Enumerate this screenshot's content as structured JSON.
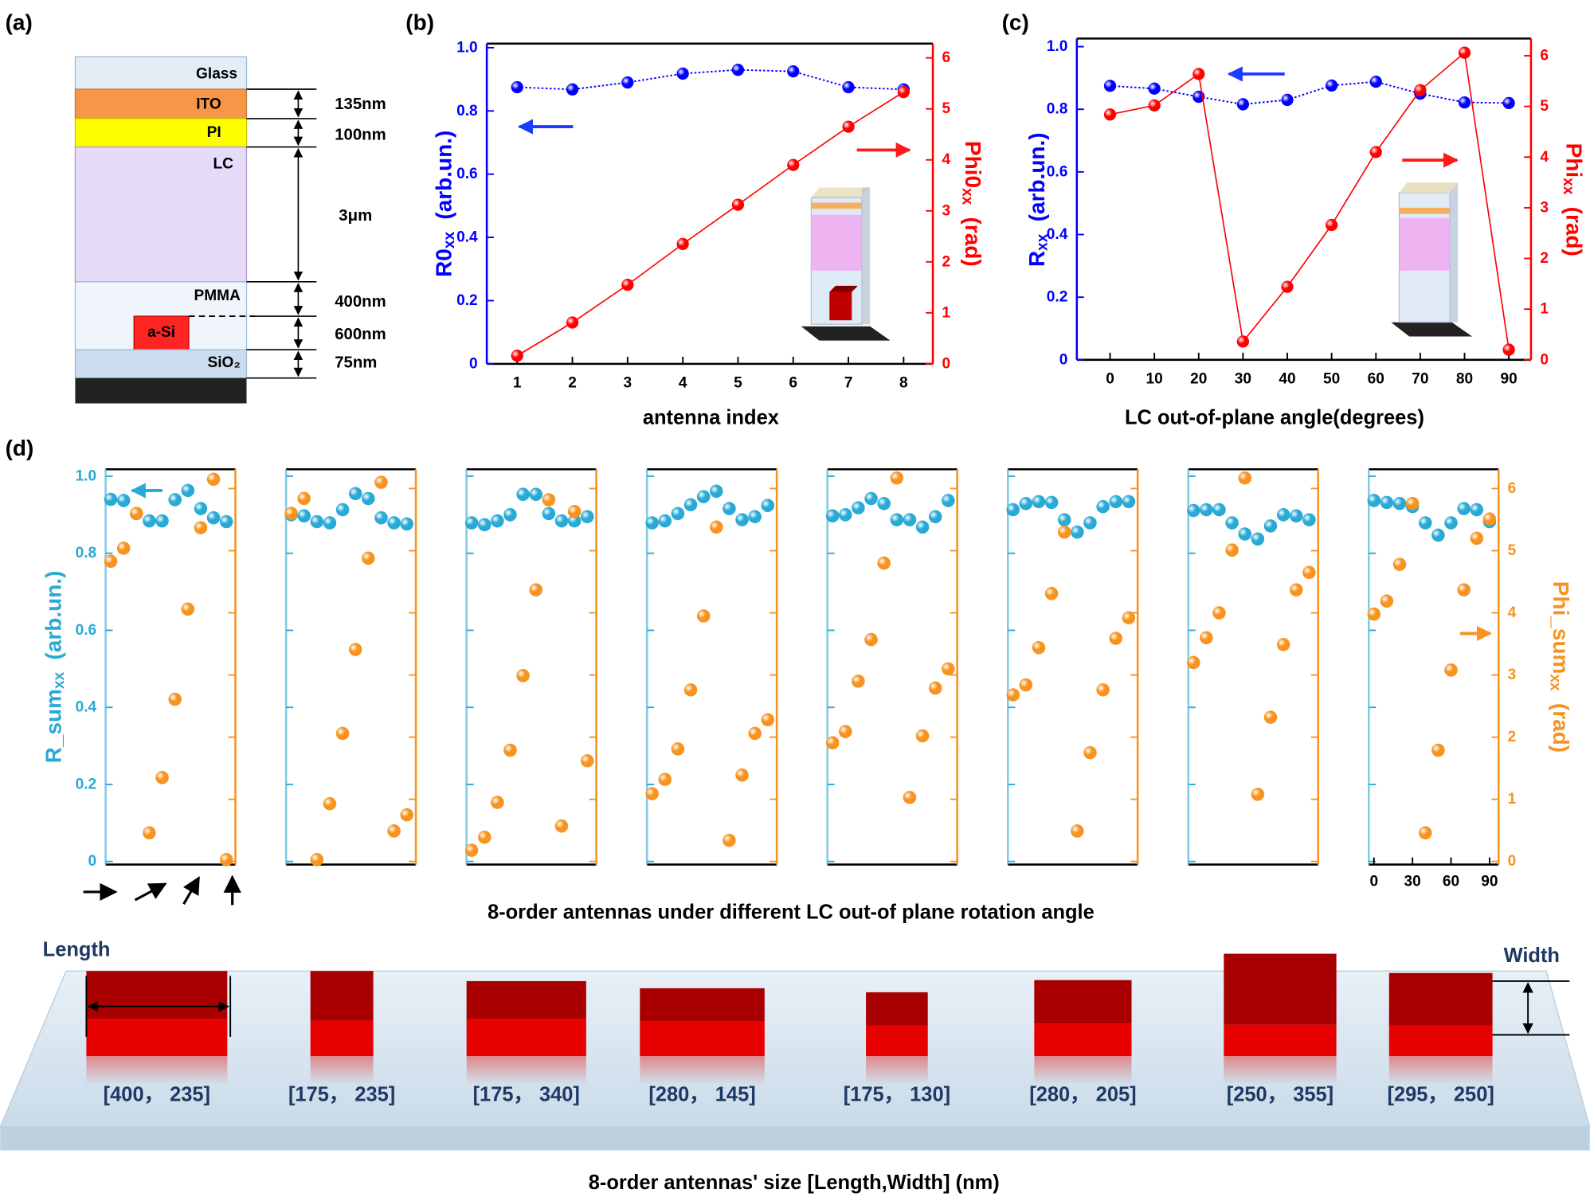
{
  "panel_labels": [
    "(a)",
    "(b)",
    "(c)",
    "(d)"
  ],
  "stack_diagram": {
    "layers": [
      "Glass",
      "ITO",
      "PI",
      "LC",
      "PMMA",
      "a-Si",
      "SiO₂"
    ],
    "thicknesses": [
      "135nm",
      "100nm",
      "3μm",
      "400nm",
      "600nm",
      "75nm"
    ]
  },
  "chart_data": [
    {
      "type": "line",
      "x": [
        1,
        2,
        3,
        4,
        5,
        6,
        7,
        8
      ],
      "xlim": [
        0.45,
        8.53
      ],
      "xticks": [
        1,
        2,
        3,
        4,
        5,
        6,
        7,
        8
      ],
      "xlabel": "antenna index",
      "ylabel": {
        "text": "R0",
        "sub": "xx",
        "unit": "(arb.un.)"
      },
      "y2label": {
        "text": "Phi0",
        "sub": "xx",
        "unit": "(rad)"
      },
      "ylim": [
        0,
        1.013
      ],
      "yticks": [
        0,
        0.2,
        0.4,
        0.6,
        0.8,
        {
          "value": 1,
          "label": "1.0"
        }
      ],
      "y2lim": [
        0,
        6.28
      ],
      "y2ticks": [
        0,
        1,
        2,
        3,
        4,
        5,
        6
      ],
      "series": [
        {
          "color": "#0000ff",
          "linestyle": "dotted",
          "values": [
            0.875,
            0.868,
            0.89,
            0.918,
            0.93,
            0.925,
            0.875,
            0.868
          ]
        },
        {
          "color": "#ff0000",
          "linestyle": "solid",
          "axis": "y2",
          "values": [
            0.16,
            0.81,
            1.55,
            2.35,
            3.12,
            3.9,
            4.65,
            5.33
          ]
        }
      ]
    },
    {
      "type": "line",
      "x": [
        0,
        10,
        20,
        30,
        40,
        50,
        60,
        70,
        80,
        90
      ],
      "xlim": [
        -7.5,
        95
      ],
      "xticks": [
        0,
        10,
        20,
        30,
        40,
        50,
        60,
        70,
        80,
        90
      ],
      "xlabel": "LC out-of-plane angle(degrees)",
      "ylabel": {
        "text": "R",
        "sub": "xx",
        "unit": "(arb.un.)"
      },
      "y2label": {
        "text": "Phi",
        "sub": "xx",
        "unit": "(rad)"
      },
      "ylim": [
        0,
        1.026
      ],
      "yticks": [
        0,
        0.2,
        0.4,
        0.6,
        0.8,
        {
          "value": 1,
          "label": "1.0"
        }
      ],
      "y2lim": [
        0,
        6.34
      ],
      "y2ticks": [
        0,
        1,
        2,
        3,
        4,
        5,
        6
      ],
      "series": [
        {
          "color": "#0000ff",
          "linestyle": "dotted",
          "values": [
            0.875,
            0.866,
            0.84,
            0.816,
            0.83,
            0.876,
            0.888,
            0.85,
            0.822,
            0.82
          ]
        },
        {
          "color": "#ff0000",
          "linestyle": "solid",
          "axis": "y2",
          "values": [
            4.84,
            5.02,
            5.64,
            0.36,
            1.44,
            2.66,
            4.1,
            5.32,
            6.06,
            0.2
          ]
        }
      ]
    },
    {
      "type": "scatter",
      "x": [
        0,
        10,
        20,
        30,
        40,
        50,
        60,
        70,
        80,
        90
      ],
      "xlim": [
        -4,
        97
      ],
      "ylim": [
        -0.008,
        1.018
      ],
      "y2lim": [
        -0.05,
        6.31
      ],
      "ylabel": {
        "text": "R_sum",
        "sub": "xx",
        "unit": "(arb.un.)"
      },
      "yticks": [
        0,
        0.2,
        0.4,
        0.6,
        0.8,
        {
          "value": 1,
          "label": "1.0"
        }
      ],
      "series": [
        {
          "color": "#29a9d6",
          "values": [
            0.94,
            0.937,
            0.903,
            0.884,
            0.884,
            0.939,
            0.963,
            0.916,
            0.892,
            0.882
          ]
        },
        {
          "color": "#f7931e",
          "axis": "y2",
          "values": [
            4.83,
            5.04,
            5.6,
            0.46,
            1.35,
            2.61,
            4.06,
            5.37,
            6.15,
            0.03
          ]
        }
      ]
    },
    {
      "type": "scatter",
      "x": [
        0,
        10,
        20,
        30,
        40,
        50,
        60,
        70,
        80,
        90
      ],
      "xlim": [
        -4,
        97
      ],
      "ylim": [
        -0.008,
        1.018
      ],
      "y2lim": [
        -0.05,
        6.31
      ],
      "series": [
        {
          "color": "#29a9d6",
          "values": [
            0.9,
            0.897,
            0.882,
            0.879,
            0.913,
            0.955,
            0.942,
            0.892,
            0.879,
            0.876
          ]
        },
        {
          "color": "#f7931e",
          "axis": "y2",
          "values": [
            5.6,
            5.84,
            0.03,
            0.93,
            2.06,
            3.41,
            4.88,
            6.1,
            0.49,
            0.75
          ]
        }
      ]
    },
    {
      "type": "scatter",
      "x": [
        0,
        10,
        20,
        30,
        40,
        50,
        60,
        70,
        80,
        90
      ],
      "xlim": [
        -4,
        97
      ],
      "ylim": [
        -0.008,
        1.018
      ],
      "y2lim": [
        -0.05,
        6.31
      ],
      "series": [
        {
          "color": "#29a9d6",
          "values": [
            0.879,
            0.874,
            0.884,
            0.9,
            0.953,
            0.953,
            0.903,
            0.884,
            0.884,
            0.895
          ]
        },
        {
          "color": "#f7931e",
          "axis": "y2",
          "values": [
            0.18,
            0.39,
            0.95,
            1.79,
            2.99,
            4.37,
            5.82,
            0.57,
            5.63,
            1.62
          ]
        }
      ]
    },
    {
      "type": "scatter",
      "x": [
        0,
        10,
        20,
        30,
        40,
        50,
        60,
        70,
        80,
        90
      ],
      "xlim": [
        -4,
        97
      ],
      "ylim": [
        -0.008,
        1.018
      ],
      "y2lim": [
        -0.05,
        6.31
      ],
      "series": [
        {
          "color": "#29a9d6",
          "values": [
            0.879,
            0.884,
            0.903,
            0.926,
            0.947,
            0.961,
            0.916,
            0.887,
            0.895,
            0.924
          ]
        },
        {
          "color": "#f7931e",
          "axis": "y2",
          "values": [
            1.09,
            1.32,
            1.81,
            2.76,
            3.95,
            5.38,
            0.34,
            1.39,
            2.06,
            2.28
          ]
        }
      ]
    },
    {
      "type": "scatter",
      "x": [
        0,
        10,
        20,
        30,
        40,
        50,
        60,
        70,
        80,
        90
      ],
      "xlim": [
        -4,
        97
      ],
      "ylim": [
        -0.008,
        1.018
      ],
      "y2lim": [
        -0.05,
        6.31
      ],
      "series": [
        {
          "color": "#29a9d6",
          "values": [
            0.897,
            0.9,
            0.918,
            0.942,
            0.929,
            0.887,
            0.887,
            0.868,
            0.895,
            0.937
          ]
        },
        {
          "color": "#f7931e",
          "axis": "y2",
          "values": [
            1.91,
            2.09,
            2.9,
            3.57,
            4.8,
            6.17,
            1.03,
            2.02,
            2.79,
            3.1
          ]
        }
      ]
    },
    {
      "type": "scatter",
      "x": [
        0,
        10,
        20,
        30,
        40,
        50,
        60,
        70,
        80,
        90
      ],
      "xlim": [
        -4,
        97
      ],
      "ylim": [
        -0.008,
        1.018
      ],
      "y2lim": [
        -0.05,
        6.31
      ],
      "series": [
        {
          "color": "#29a9d6",
          "values": [
            0.913,
            0.929,
            0.934,
            0.932,
            0.887,
            0.855,
            0.879,
            0.921,
            0.934,
            0.934
          ]
        },
        {
          "color": "#f7931e",
          "axis": "y2",
          "values": [
            2.68,
            2.84,
            3.44,
            4.31,
            5.3,
            0.49,
            1.75,
            2.76,
            3.59,
            3.92
          ]
        }
      ]
    },
    {
      "type": "scatter",
      "x": [
        0,
        10,
        20,
        30,
        40,
        50,
        60,
        70,
        80,
        90
      ],
      "xlim": [
        -4,
        97
      ],
      "ylim": [
        -0.008,
        1.018
      ],
      "y2lim": [
        -0.05,
        6.31
      ],
      "series": [
        {
          "color": "#29a9d6",
          "values": [
            0.911,
            0.913,
            0.913,
            0.879,
            0.85,
            0.837,
            0.871,
            0.9,
            0.897,
            0.887
          ]
        },
        {
          "color": "#f7931e",
          "axis": "y2",
          "values": [
            3.2,
            3.6,
            4.0,
            5.01,
            6.17,
            1.08,
            2.32,
            3.49,
            4.37,
            4.65
          ]
        }
      ]
    },
    {
      "type": "scatter",
      "x": [
        0,
        10,
        20,
        30,
        40,
        50,
        60,
        70,
        80,
        90
      ],
      "xlim": [
        -4,
        97
      ],
      "ylim": [
        -0.008,
        1.018
      ],
      "y2lim": [
        -0.05,
        6.31
      ],
      "xticks": [
        0,
        30,
        60,
        90
      ],
      "y2label": {
        "text": "Phi_sum",
        "sub": "xx",
        "unit": "(rad)"
      },
      "y2ticks": [
        0,
        1,
        2,
        3,
        4,
        5,
        6
      ],
      "series": [
        {
          "color": "#29a9d6",
          "values": [
            0.937,
            0.932,
            0.929,
            0.921,
            0.879,
            0.847,
            0.879,
            0.916,
            0.913,
            0.882
          ]
        },
        {
          "color": "#f7931e",
          "axis": "y2",
          "values": [
            3.98,
            4.19,
            4.78,
            5.76,
            0.46,
            1.79,
            3.08,
            4.37,
            5.2,
            5.51
          ]
        }
      ]
    }
  ],
  "panel_d": {
    "caption": "8-order antennas under different LC out-of plane rotation angle"
  },
  "antennas": {
    "length_label": "Length",
    "width_label": "Width",
    "sizes": [
      "[400， 235]",
      "[175， 235]",
      "[175， 340]",
      "[280， 145]",
      "[175， 130]",
      "[280， 205]",
      "[250， 355]",
      "[295， 250]"
    ],
    "caption": "8-order antennas' size [Length,Width] (nm)"
  }
}
